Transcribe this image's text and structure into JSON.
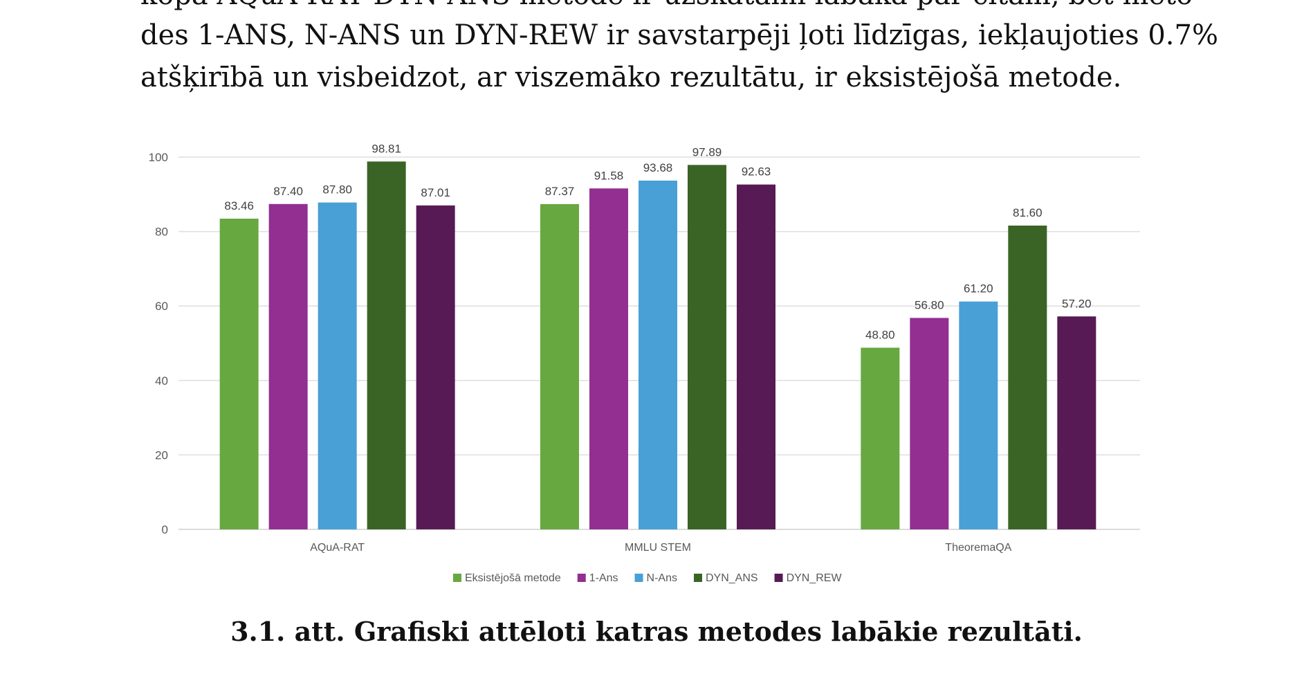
{
  "paragraph": {
    "lines": [
      "kopā AQuA-RAT DYN-ANS metode ir uzskatāmi labāka par citām, bet meto-",
      "des 1-ANS, N-ANS un DYN-REW ir savstarpēji ļoti līdzīgas, iekļaujoties 0.7%",
      "atšķirībā un visbeidzot, ar viszemāko rezultātu, ir eksistējošā metode."
    ]
  },
  "chart_data": {
    "type": "bar",
    "categories": [
      "AQuA-RAT",
      "MMLU STEM",
      "TheoremaQA"
    ],
    "series": [
      {
        "name": "Eksistējošā metode",
        "color": "#67a840",
        "values": [
          83.46,
          87.37,
          48.8
        ]
      },
      {
        "name": "1-Ans",
        "color": "#922f91",
        "values": [
          87.4,
          91.58,
          56.8
        ]
      },
      {
        "name": "N-Ans",
        "color": "#48a0d6",
        "values": [
          87.8,
          93.68,
          61.2
        ]
      },
      {
        "name": "DYN_ANS",
        "color": "#3a6425",
        "values": [
          98.81,
          97.89,
          81.6
        ]
      },
      {
        "name": "DYN_REW",
        "color": "#571a54",
        "values": [
          87.01,
          92.63,
          57.2
        ]
      }
    ],
    "value_labels": [
      [
        "83.46",
        "87.37",
        "48.80"
      ],
      [
        "87.40",
        "91.58",
        "56.80"
      ],
      [
        "87.80",
        "93.68",
        "61.20"
      ],
      [
        "98.81",
        "97.89",
        "81.60"
      ],
      [
        "87.01",
        "92.63",
        "57.20"
      ]
    ],
    "y_ticks": [
      "0",
      "20",
      "40",
      "60",
      "80",
      "100"
    ],
    "ylim": [
      0,
      100
    ],
    "grid": true,
    "legend_position": "bottom",
    "title": "",
    "xlabel": "",
    "ylabel": ""
  },
  "caption": "3.1. att. Grafiski attēloti katras metodes labākie rezultāti."
}
